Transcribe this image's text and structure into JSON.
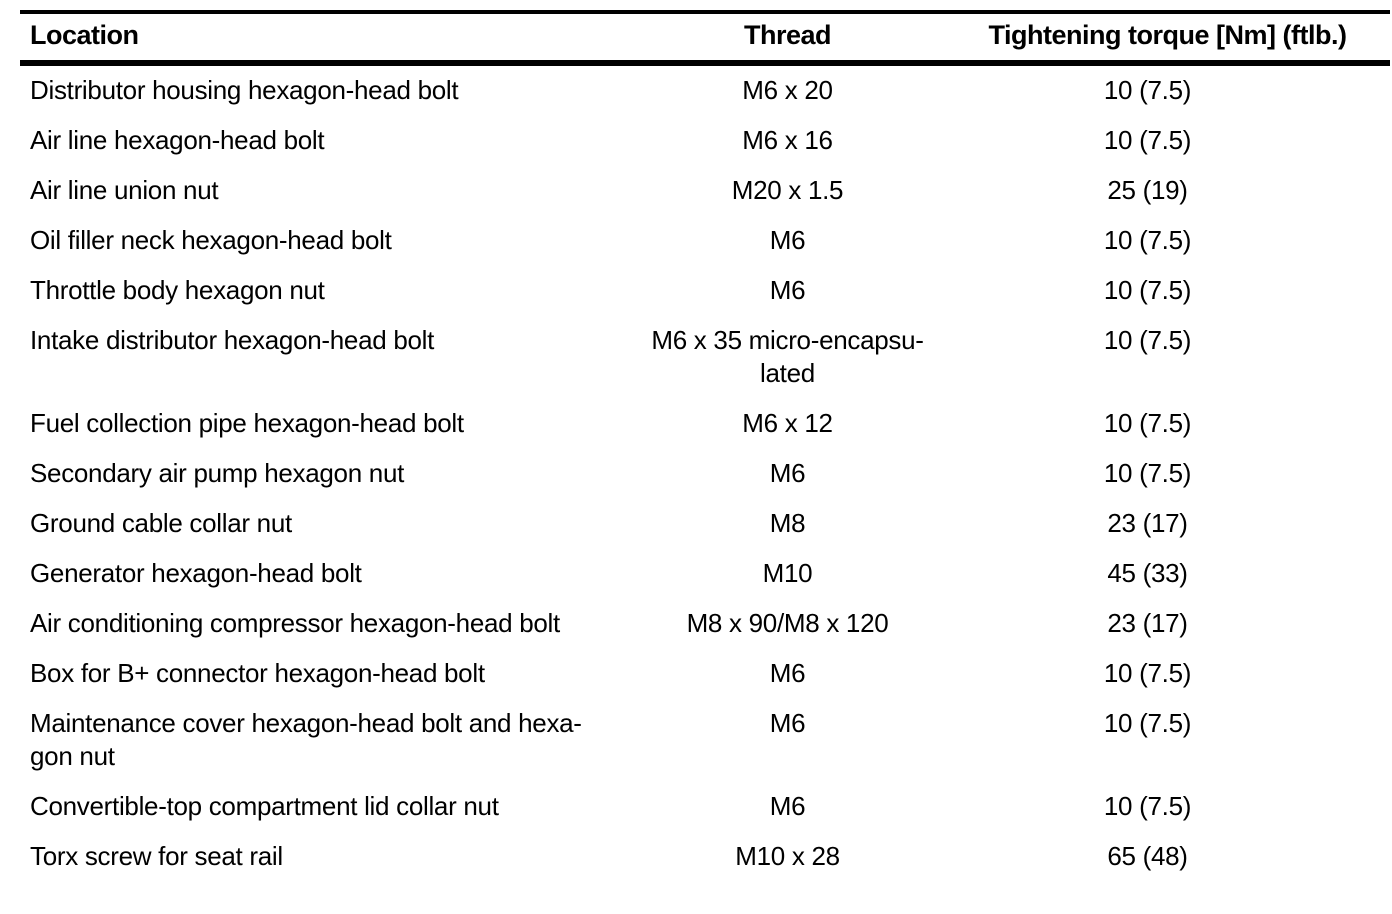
{
  "table": {
    "columns": [
      {
        "label": "Location",
        "align": "left"
      },
      {
        "label": "Thread",
        "align": "center"
      },
      {
        "label": "Tightening torque [Nm] (ftlb.)",
        "align": "center"
      }
    ],
    "rows": [
      {
        "location": "Distributor housing hexagon-head bolt",
        "thread": "M6 x 20",
        "torque": "10 (7.5)"
      },
      {
        "location": "Air line hexagon-head bolt",
        "thread": "M6 x 16",
        "torque": "10 (7.5)"
      },
      {
        "location": "Air line union nut",
        "thread": "M20 x 1.5",
        "torque": "25 (19)"
      },
      {
        "location": "Oil filler neck hexagon-head bolt",
        "thread": "M6",
        "torque": "10 (7.5)"
      },
      {
        "location": "Throttle body hexagon nut",
        "thread": "M6",
        "torque": "10 (7.5)"
      },
      {
        "location": "Intake distributor hexagon-head bolt",
        "thread": "M6 x 35 micro-encapsu-\nlated",
        "torque": "10 (7.5)"
      },
      {
        "location": "Fuel collection pipe hexagon-head bolt",
        "thread": "M6 x 12",
        "torque": "10 (7.5)"
      },
      {
        "location": "Secondary air pump hexagon nut",
        "thread": "M6",
        "torque": "10 (7.5)"
      },
      {
        "location": "Ground cable collar nut",
        "thread": "M8",
        "torque": "23 (17)"
      },
      {
        "location": "Generator hexagon-head bolt",
        "thread": "M10",
        "torque": "45 (33)"
      },
      {
        "location": "Air conditioning compressor hexagon-head bolt",
        "thread": "M8 x 90/M8 x 120",
        "torque": "23 (17)"
      },
      {
        "location": "Box for B+ connector hexagon-head bolt",
        "thread": "M6",
        "torque": "10 (7.5)"
      },
      {
        "location": "Maintenance cover hexagon-head bolt and hexa-\ngon nut",
        "thread": "M6",
        "torque": "10 (7.5)"
      },
      {
        "location": "Convertible-top compartment lid collar nut",
        "thread": "M6",
        "torque": "10 (7.5)"
      },
      {
        "location": "Torx screw for seat rail",
        "thread": "M10 x 28",
        "torque": "65 (48)"
      }
    ]
  },
  "colors": {
    "text": "#000000",
    "rule": "#000000",
    "background": "#ffffff"
  }
}
